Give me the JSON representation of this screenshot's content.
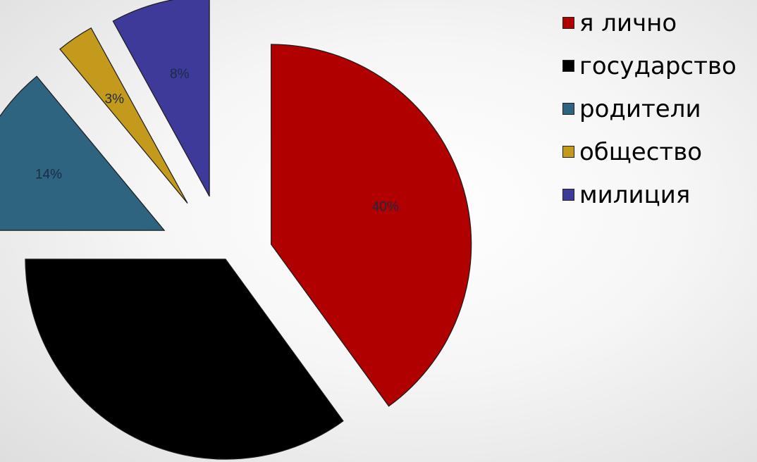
{
  "chart_data": {
    "type": "pie",
    "exploded": true,
    "slices": [
      {
        "label": "я лично",
        "value": 40,
        "data_label": "40%",
        "color": "#b00000"
      },
      {
        "label": "государство",
        "value": 35,
        "data_label": "",
        "color": "#000000"
      },
      {
        "label": "родители",
        "value": 14,
        "data_label": "14%",
        "color": "#2e6480"
      },
      {
        "label": "общество",
        "value": 3,
        "data_label": "3%",
        "color": "#c49a1c"
      },
      {
        "label": "милиция",
        "value": 8,
        "data_label": "8%",
        "color": "#3e3a9a"
      }
    ],
    "legend_position": "top-right",
    "title": ""
  }
}
